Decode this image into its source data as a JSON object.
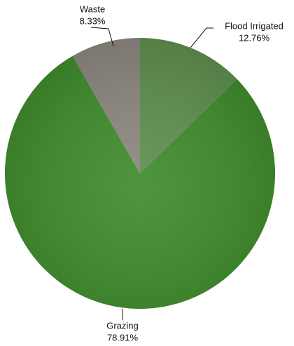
{
  "chart_data": {
    "type": "pie",
    "categories": [
      "Flood Irrigated",
      "Grazing",
      "Waste"
    ],
    "values": [
      12.76,
      78.91,
      8.33
    ],
    "value_labels": [
      "12.76%",
      "78.91%",
      "8.33%"
    ],
    "colors": [
      "#5f8f4e",
      "#3f8c2c",
      "#8d8781"
    ]
  }
}
